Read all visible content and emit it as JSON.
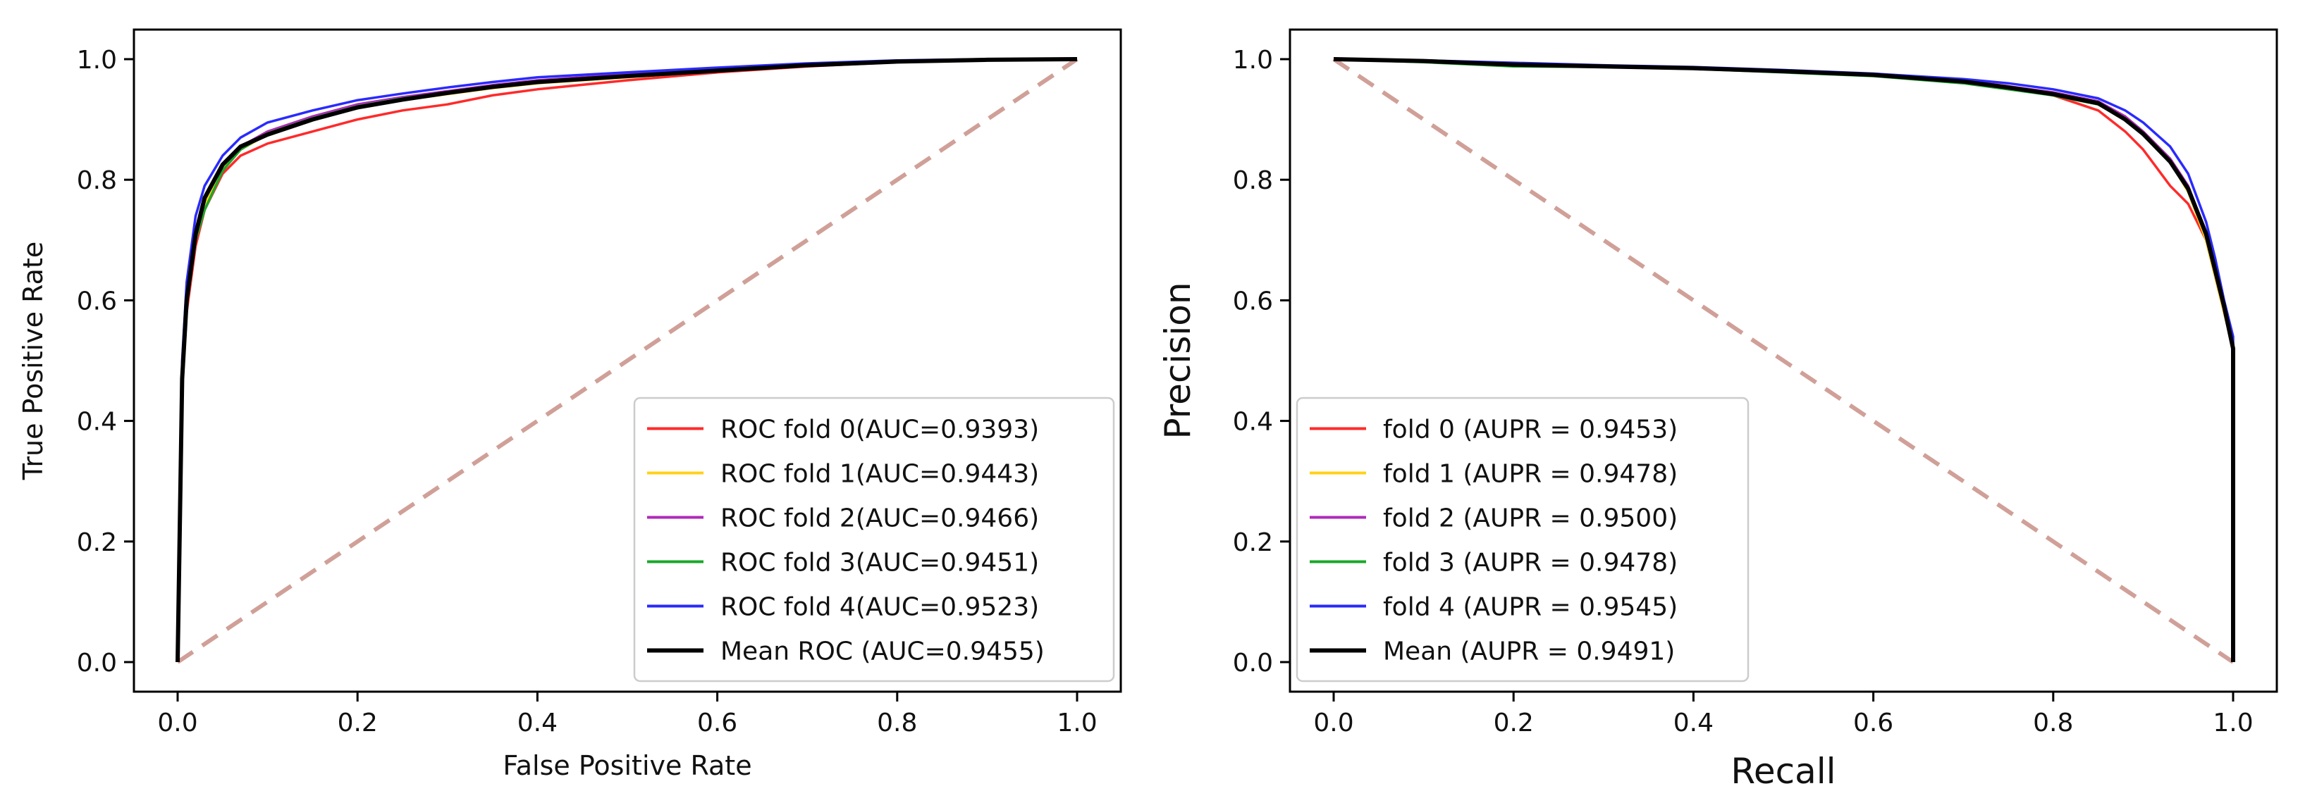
{
  "colors": {
    "fold0": "#ff2a2a",
    "fold1": "#ffd21a",
    "fold2": "#b02ab8",
    "fold3": "#1aa82a",
    "fold4": "#2a2aff",
    "mean": "#000000",
    "chance": "#d0a098",
    "axis": "#000000"
  },
  "chart_data": [
    {
      "type": "line",
      "name": "roc",
      "xlabel": "False Positive Rate",
      "ylabel": "True Positive Rate",
      "xlim": [
        0,
        1
      ],
      "ylim": [
        0,
        1
      ],
      "xticks": [
        "0.0",
        "0.2",
        "0.4",
        "0.6",
        "0.8",
        "1.0"
      ],
      "yticks": [
        "0.0",
        "0.2",
        "0.4",
        "0.6",
        "0.8",
        "1.0"
      ],
      "legend_position": "lower-right",
      "chance_line": {
        "x": [
          0,
          1
        ],
        "y": [
          0,
          1
        ]
      },
      "series": [
        {
          "name": "ROC fold 0(AUC=0.9393)",
          "color_key": "fold0",
          "x": [
            0,
            0.005,
            0.01,
            0.02,
            0.03,
            0.05,
            0.07,
            0.1,
            0.15,
            0.2,
            0.25,
            0.3,
            0.35,
            0.4,
            0.5,
            0.6,
            0.7,
            0.8,
            0.9,
            1.0
          ],
          "y": [
            0,
            0.45,
            0.58,
            0.69,
            0.75,
            0.81,
            0.84,
            0.86,
            0.88,
            0.9,
            0.915,
            0.925,
            0.94,
            0.95,
            0.965,
            0.978,
            0.988,
            0.995,
            0.998,
            1.0
          ]
        },
        {
          "name": "ROC fold 1(AUC=0.9443)",
          "color_key": "fold1",
          "x": [
            0,
            0.005,
            0.01,
            0.02,
            0.03,
            0.05,
            0.07,
            0.1,
            0.15,
            0.2,
            0.25,
            0.3,
            0.35,
            0.4,
            0.5,
            0.6,
            0.7,
            0.8,
            0.9,
            1.0
          ],
          "y": [
            0,
            0.46,
            0.59,
            0.7,
            0.76,
            0.82,
            0.85,
            0.875,
            0.9,
            0.92,
            0.932,
            0.942,
            0.952,
            0.96,
            0.97,
            0.98,
            0.99,
            0.996,
            0.999,
            1.0
          ]
        },
        {
          "name": "ROC fold 2(AUC=0.9466)",
          "color_key": "fold2",
          "x": [
            0,
            0.005,
            0.01,
            0.02,
            0.03,
            0.05,
            0.07,
            0.1,
            0.15,
            0.2,
            0.25,
            0.3,
            0.35,
            0.4,
            0.5,
            0.6,
            0.7,
            0.8,
            0.9,
            1.0
          ],
          "y": [
            0,
            0.47,
            0.6,
            0.71,
            0.77,
            0.825,
            0.855,
            0.88,
            0.905,
            0.925,
            0.937,
            0.947,
            0.957,
            0.965,
            0.975,
            0.983,
            0.991,
            0.997,
            0.999,
            1.0
          ]
        },
        {
          "name": "ROC fold 3(AUC=0.9451)",
          "color_key": "fold3",
          "x": [
            0,
            0.005,
            0.01,
            0.02,
            0.03,
            0.05,
            0.07,
            0.1,
            0.15,
            0.2,
            0.25,
            0.3,
            0.35,
            0.4,
            0.5,
            0.6,
            0.7,
            0.8,
            0.9,
            1.0
          ],
          "y": [
            0,
            0.46,
            0.59,
            0.7,
            0.75,
            0.815,
            0.85,
            0.877,
            0.902,
            0.922,
            0.935,
            0.945,
            0.955,
            0.963,
            0.973,
            0.982,
            0.99,
            0.996,
            0.999,
            1.0
          ]
        },
        {
          "name": "ROC fold 4(AUC=0.9523)",
          "color_key": "fold4",
          "x": [
            0,
            0.005,
            0.01,
            0.02,
            0.03,
            0.05,
            0.07,
            0.1,
            0.15,
            0.2,
            0.25,
            0.3,
            0.35,
            0.4,
            0.5,
            0.6,
            0.7,
            0.8,
            0.9,
            1.0
          ],
          "y": [
            0,
            0.5,
            0.63,
            0.74,
            0.79,
            0.84,
            0.87,
            0.895,
            0.915,
            0.932,
            0.943,
            0.953,
            0.962,
            0.97,
            0.978,
            0.986,
            0.993,
            0.998,
            1.0,
            1.0
          ]
        },
        {
          "name": "Mean ROC (AUC=0.9455)",
          "color_key": "mean",
          "x": [
            0,
            0.005,
            0.01,
            0.02,
            0.03,
            0.05,
            0.07,
            0.1,
            0.15,
            0.2,
            0.25,
            0.3,
            0.35,
            0.4,
            0.5,
            0.6,
            0.7,
            0.8,
            0.9,
            1.0
          ],
          "y": [
            0,
            0.47,
            0.6,
            0.71,
            0.77,
            0.825,
            0.855,
            0.875,
            0.9,
            0.92,
            0.933,
            0.944,
            0.954,
            0.962,
            0.972,
            0.981,
            0.99,
            0.996,
            0.999,
            1.0
          ]
        }
      ]
    },
    {
      "type": "line",
      "name": "pr",
      "xlabel": "Recall",
      "ylabel": "Precision",
      "xlim": [
        0,
        1
      ],
      "ylim": [
        0,
        1
      ],
      "xticks": [
        "0.0",
        "0.2",
        "0.4",
        "0.6",
        "0.8",
        "1.0"
      ],
      "yticks": [
        "0.0",
        "0.2",
        "0.4",
        "0.6",
        "0.8",
        "1.0"
      ],
      "legend_position": "lower-left",
      "chance_line": {
        "x": [
          0,
          1
        ],
        "y": [
          1,
          0
        ]
      },
      "series": [
        {
          "name": "fold 0 (AUPR = 0.9453)",
          "color_key": "fold0",
          "x": [
            0,
            0.1,
            0.2,
            0.3,
            0.4,
            0.5,
            0.6,
            0.7,
            0.75,
            0.8,
            0.85,
            0.88,
            0.9,
            0.93,
            0.95,
            0.97,
            0.98,
            0.99,
            1.0,
            1.0
          ],
          "y": [
            1.0,
            0.997,
            0.992,
            0.988,
            0.985,
            0.98,
            0.975,
            0.965,
            0.955,
            0.94,
            0.915,
            0.88,
            0.85,
            0.79,
            0.76,
            0.7,
            0.64,
            0.58,
            0.52,
            0
          ],
          "dash_end": true
        },
        {
          "name": "fold 1 (AUPR = 0.9478)",
          "color_key": "fold1",
          "x": [
            0,
            0.1,
            0.2,
            0.3,
            0.4,
            0.5,
            0.6,
            0.7,
            0.75,
            0.8,
            0.85,
            0.88,
            0.9,
            0.93,
            0.95,
            0.97,
            0.98,
            0.99,
            1.0,
            1.0
          ],
          "y": [
            1.0,
            0.996,
            0.99,
            0.987,
            0.984,
            0.979,
            0.973,
            0.962,
            0.952,
            0.94,
            0.925,
            0.9,
            0.875,
            0.83,
            0.78,
            0.7,
            0.64,
            0.58,
            0.52,
            0
          ]
        },
        {
          "name": "fold 2 (AUPR = 0.9500)",
          "color_key": "fold2",
          "x": [
            0,
            0.1,
            0.2,
            0.3,
            0.4,
            0.5,
            0.6,
            0.7,
            0.75,
            0.8,
            0.85,
            0.88,
            0.9,
            0.93,
            0.95,
            0.97,
            0.98,
            0.99,
            1.0,
            1.0
          ],
          "y": [
            1.0,
            0.997,
            0.992,
            0.988,
            0.985,
            0.98,
            0.974,
            0.964,
            0.955,
            0.945,
            0.93,
            0.905,
            0.88,
            0.835,
            0.79,
            0.71,
            0.65,
            0.59,
            0.53,
            0
          ]
        },
        {
          "name": "fold 3 (AUPR = 0.9478)",
          "color_key": "fold3",
          "x": [
            0,
            0.1,
            0.2,
            0.3,
            0.4,
            0.5,
            0.6,
            0.7,
            0.75,
            0.8,
            0.85,
            0.88,
            0.9,
            0.93,
            0.95,
            0.97,
            0.98,
            0.99,
            1.0,
            1.0
          ],
          "y": [
            1.0,
            0.995,
            0.988,
            0.987,
            0.984,
            0.978,
            0.972,
            0.96,
            0.95,
            0.94,
            0.925,
            0.9,
            0.876,
            0.83,
            0.785,
            0.705,
            0.645,
            0.585,
            0.525,
            0
          ]
        },
        {
          "name": "fold 4 (AUPR = 0.9545)",
          "color_key": "fold4",
          "x": [
            0,
            0.1,
            0.2,
            0.3,
            0.4,
            0.5,
            0.6,
            0.7,
            0.75,
            0.8,
            0.85,
            0.88,
            0.9,
            0.93,
            0.95,
            0.97,
            0.98,
            0.99,
            1.0,
            1.0
          ],
          "y": [
            1.0,
            0.998,
            0.994,
            0.99,
            0.987,
            0.982,
            0.976,
            0.967,
            0.96,
            0.95,
            0.935,
            0.915,
            0.895,
            0.855,
            0.81,
            0.73,
            0.67,
            0.6,
            0.54,
            0
          ]
        },
        {
          "name": "Mean (AUPR = 0.9491)",
          "color_key": "mean",
          "x": [
            0,
            0.1,
            0.2,
            0.3,
            0.4,
            0.5,
            0.6,
            0.7,
            0.75,
            0.8,
            0.85,
            0.88,
            0.9,
            0.93,
            0.95,
            0.97,
            0.98,
            0.99,
            1.0,
            1.0
          ],
          "y": [
            1.0,
            0.997,
            0.991,
            0.988,
            0.985,
            0.98,
            0.974,
            0.963,
            0.953,
            0.942,
            0.927,
            0.9,
            0.876,
            0.83,
            0.785,
            0.71,
            0.65,
            0.59,
            0.52,
            0
          ]
        }
      ]
    }
  ]
}
